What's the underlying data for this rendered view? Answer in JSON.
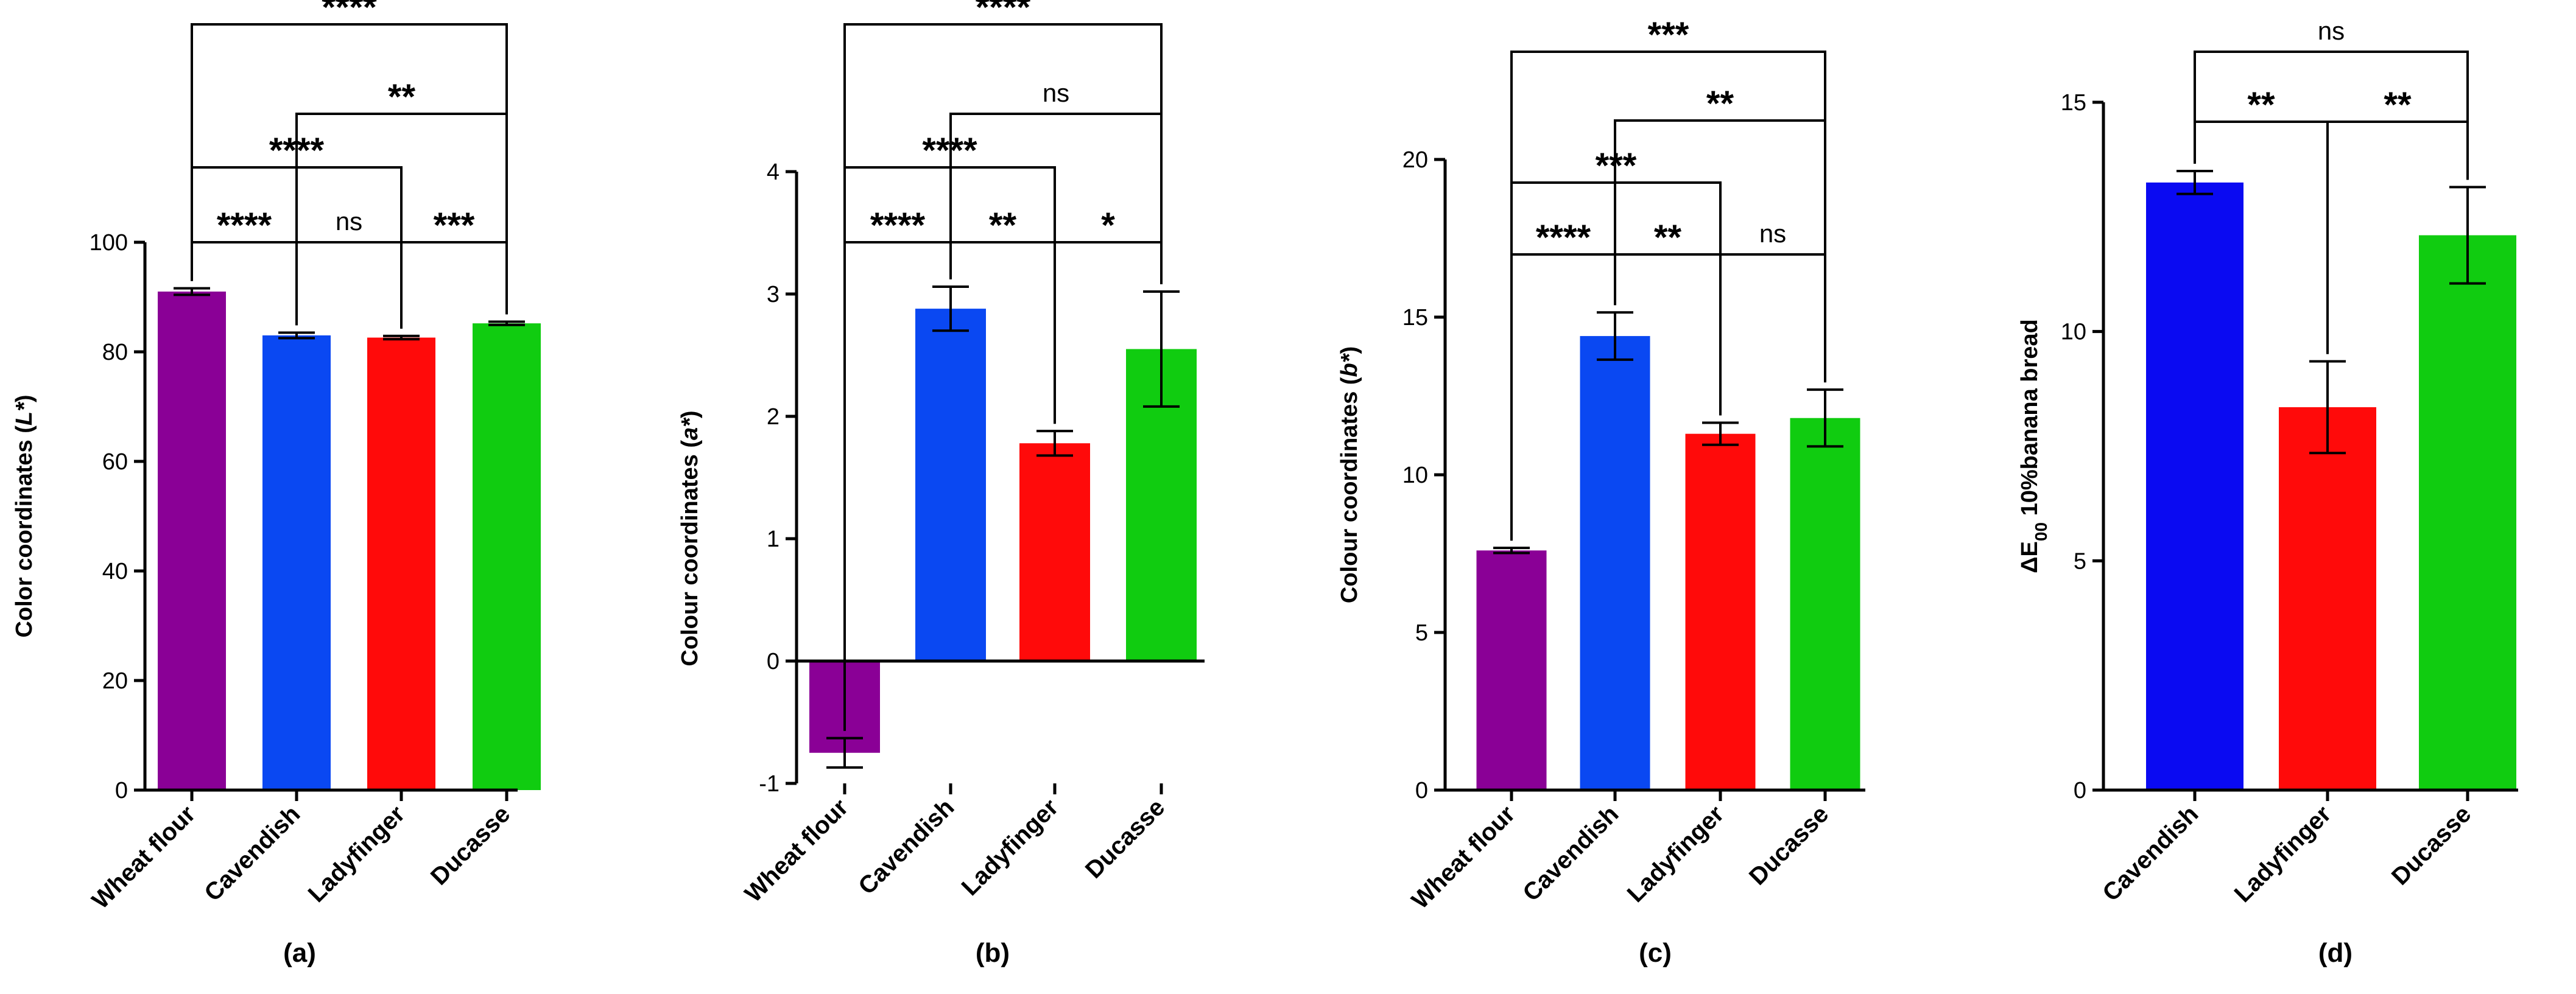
{
  "chart_data": [
    {
      "type": "bar",
      "panel": "(a)",
      "ylabel": "Color coordinates (L*)",
      "ylabel_parts": [
        "Color coordinates (",
        "L*",
        ")"
      ],
      "ylim": [
        0,
        100
      ],
      "yticks": [
        0,
        20,
        40,
        60,
        80,
        100
      ],
      "ytick_labels": [
        "0",
        "20",
        "40",
        "60",
        "80",
        "100"
      ],
      "categories": [
        "Wheat flour",
        "Cavendish",
        "Ladyfinger",
        "Ducasse"
      ],
      "values": [
        91.0,
        83.0,
        82.6,
        85.2
      ],
      "errors": [
        0.6,
        0.5,
        0.3,
        0.3
      ],
      "colors": [
        "#8a0096",
        "#0a48f2",
        "#ff0a0a",
        "#10cc10"
      ],
      "comparisons": [
        {
          "from": 0,
          "to": 1,
          "label": "****"
        },
        {
          "from": 1,
          "to": 2,
          "label": "ns"
        },
        {
          "from": 2,
          "to": 3,
          "label": "***"
        },
        {
          "from": 0,
          "to": 2,
          "label": "****"
        },
        {
          "from": 1,
          "to": 3,
          "label": "**"
        },
        {
          "from": 0,
          "to": 3,
          "label": "****"
        }
      ]
    },
    {
      "type": "bar",
      "panel": "(b)",
      "ylabel": "Colour coordinates (a*)",
      "ylabel_parts": [
        "Colour coordinates (",
        "a*",
        ")"
      ],
      "ylim": [
        -1,
        4
      ],
      "yticks": [
        -1,
        0,
        1,
        2,
        3,
        4
      ],
      "ytick_labels": [
        "-1",
        "0",
        "1",
        "2",
        "3",
        "4"
      ],
      "categories": [
        "Wheat flour",
        "Cavendish",
        "Ladyfinger",
        "Ducasse"
      ],
      "values": [
        -0.75,
        2.88,
        1.78,
        2.55
      ],
      "errors": [
        0.12,
        0.18,
        0.1,
        0.47
      ],
      "colors": [
        "#8a0096",
        "#0a48f2",
        "#ff0a0a",
        "#10cc10"
      ],
      "comparisons": [
        {
          "from": 0,
          "to": 1,
          "label": "****"
        },
        {
          "from": 1,
          "to": 2,
          "label": "**"
        },
        {
          "from": 2,
          "to": 3,
          "label": "*"
        },
        {
          "from": 0,
          "to": 2,
          "label": "****"
        },
        {
          "from": 1,
          "to": 3,
          "label": "ns"
        },
        {
          "from": 0,
          "to": 3,
          "label": "****"
        }
      ]
    },
    {
      "type": "bar",
      "panel": "(c)",
      "ylabel": "Colour coordinates (b*)",
      "ylabel_parts": [
        "Colour coordinates (",
        "b*",
        ")"
      ],
      "ylim": [
        0,
        20
      ],
      "yticks": [
        0,
        5,
        10,
        15,
        20
      ],
      "ytick_labels": [
        "0",
        "5",
        "10",
        "15",
        "20"
      ],
      "categories": [
        "Wheat flour",
        "Cavendish",
        "Ladyfinger",
        "Ducasse"
      ],
      "values": [
        7.6,
        14.4,
        11.3,
        11.8
      ],
      "errors": [
        0.08,
        0.75,
        0.35,
        0.9
      ],
      "colors": [
        "#8a0096",
        "#0a48f2",
        "#ff0a0a",
        "#10cc10"
      ],
      "comparisons": [
        {
          "from": 0,
          "to": 1,
          "label": "****"
        },
        {
          "from": 1,
          "to": 2,
          "label": "**"
        },
        {
          "from": 2,
          "to": 3,
          "label": "ns"
        },
        {
          "from": 0,
          "to": 2,
          "label": "***"
        },
        {
          "from": 1,
          "to": 3,
          "label": "**"
        },
        {
          "from": 0,
          "to": 3,
          "label": "***"
        }
      ]
    },
    {
      "type": "bar",
      "panel": "(d)",
      "ylabel": "ΔE00 10%banana bread",
      "ylabel_parts": [
        "ΔE",
        "00",
        " 10%banana bread"
      ],
      "ylim": [
        0,
        15
      ],
      "yticks": [
        0,
        5,
        10,
        15
      ],
      "ytick_labels": [
        "0",
        "5",
        "10",
        "15"
      ],
      "categories": [
        "Cavendish",
        "Ladyfinger",
        "Ducasse"
      ],
      "values": [
        13.25,
        8.35,
        12.1
      ],
      "errors": [
        0.25,
        1.0,
        1.05
      ],
      "colors": [
        "#0a0af2",
        "#ff0a0a",
        "#10cc10"
      ],
      "comparisons": [
        {
          "from": 0,
          "to": 1,
          "label": "**"
        },
        {
          "from": 1,
          "to": 2,
          "label": "**"
        },
        {
          "from": 0,
          "to": 2,
          "label": "ns"
        }
      ]
    }
  ]
}
